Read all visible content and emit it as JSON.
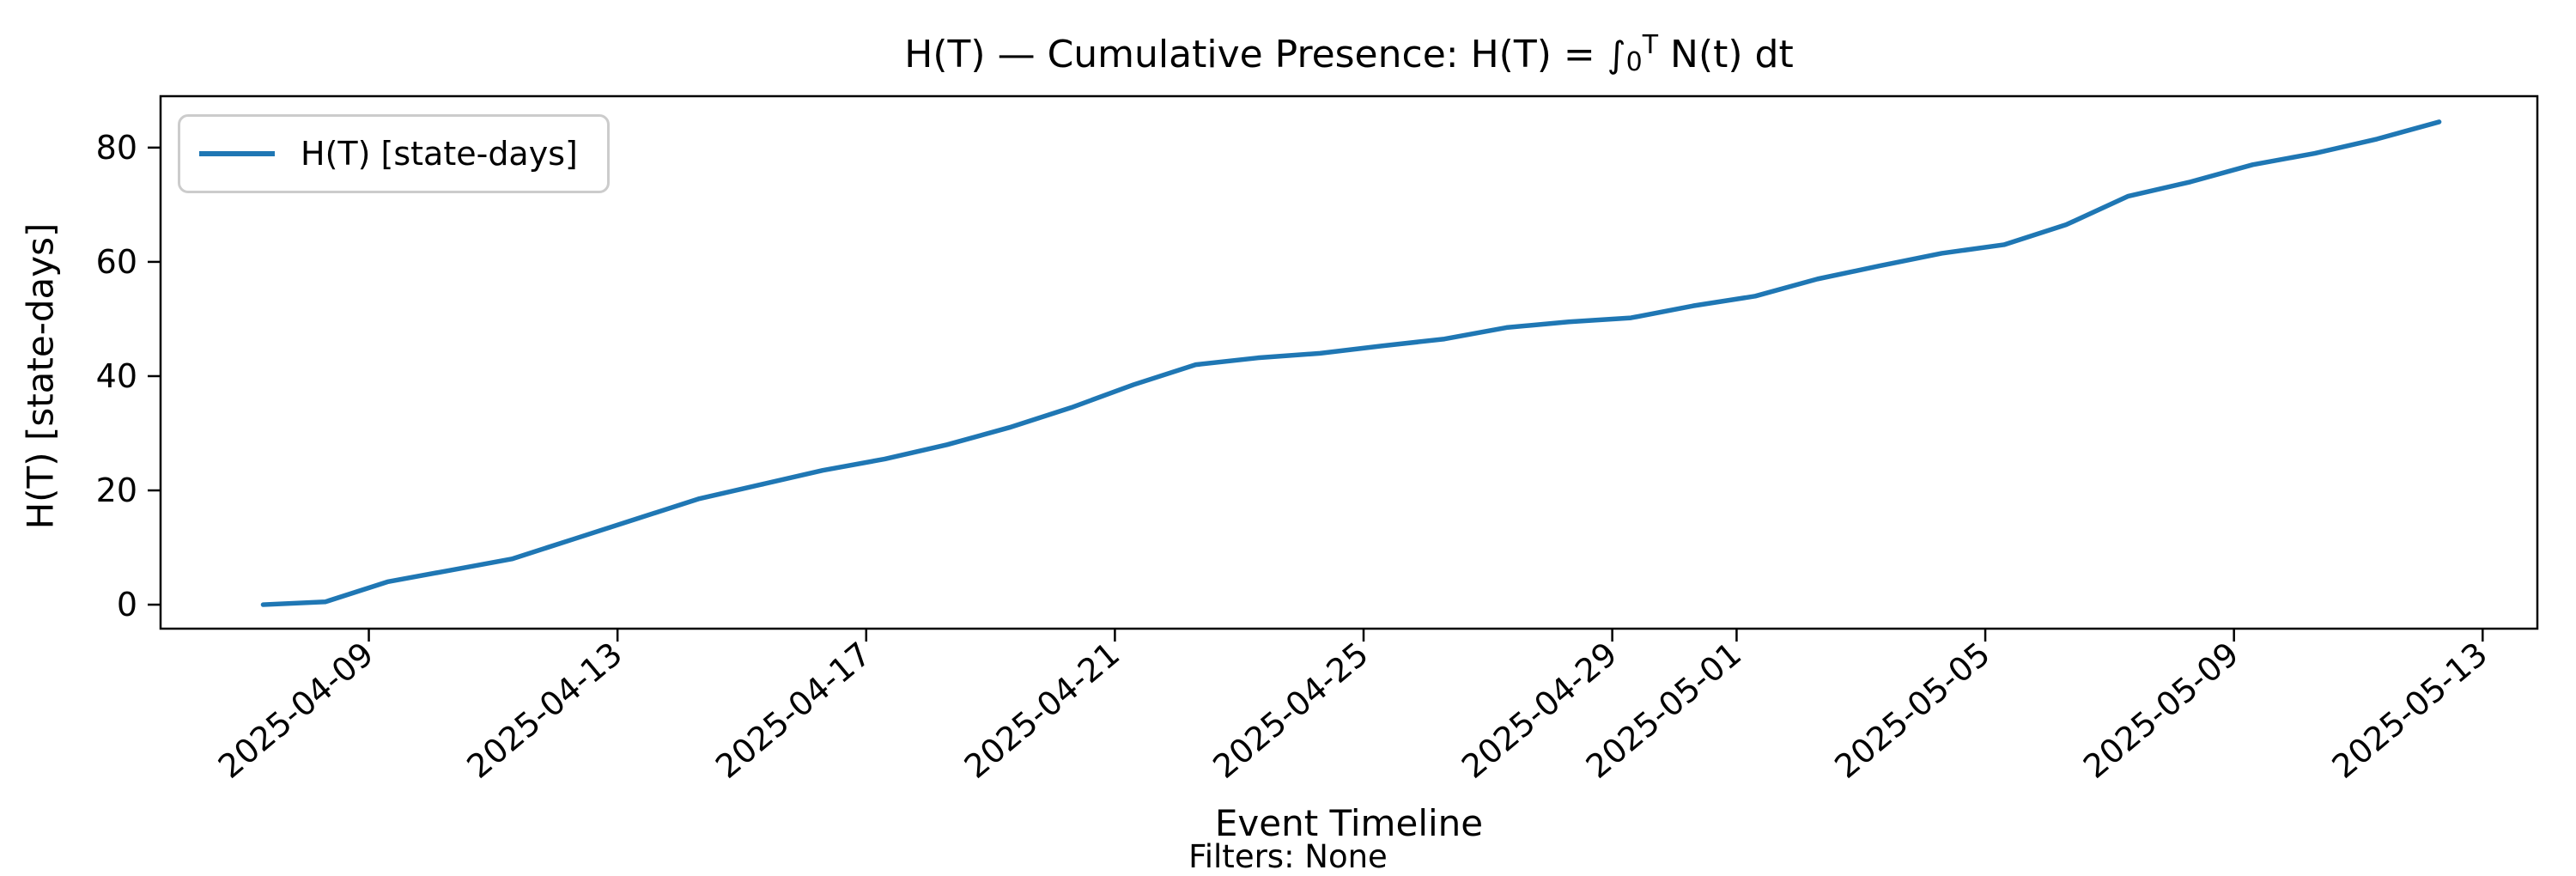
{
  "figure": {
    "title": "H(T) — Cumulative Presence: H(T) = ∫₀ᵀ N(t) dt",
    "title_parts": {
      "prefix": "H(T) — Cumulative Presence: H(T) = ",
      "integral": "∫",
      "sub": "0",
      "sup": "T",
      "suffix": " N(t) dt"
    },
    "xlabel": "Event Timeline",
    "ylabel": "H(T) [state-days]",
    "note": "Filters: None"
  },
  "legend": {
    "label": "H(T) [state-days]",
    "position": "upper left"
  },
  "chart_data": {
    "type": "line",
    "title": "H(T) — Cumulative Presence: H(T) = ∫₀ᵀ N(t) dt",
    "xlabel": "Event Timeline",
    "ylabel": "H(T) [state-days]",
    "annotation": "Filters: None",
    "legend_entries": [
      "H(T) [state-days]"
    ],
    "legend_position": "upper left",
    "line_color": "#1f77b4",
    "axis_color": "#000000",
    "grid": false,
    "x": [
      "2025-04-07",
      "2025-04-08",
      "2025-04-09",
      "2025-04-10",
      "2025-04-11",
      "2025-04-12",
      "2025-04-13",
      "2025-04-14",
      "2025-04-15",
      "2025-04-16",
      "2025-04-17",
      "2025-04-18",
      "2025-04-19",
      "2025-04-20",
      "2025-04-21",
      "2025-04-22",
      "2025-04-23",
      "2025-04-24",
      "2025-04-25",
      "2025-04-26",
      "2025-04-27",
      "2025-04-28",
      "2025-04-29",
      "2025-04-30",
      "2025-05-01",
      "2025-05-02",
      "2025-05-03",
      "2025-05-04",
      "2025-05-05",
      "2025-05-06",
      "2025-05-07",
      "2025-05-08",
      "2025-05-09",
      "2025-05-10",
      "2025-05-11",
      "2025-05-12"
    ],
    "y": [
      0,
      0.5,
      4,
      6,
      8,
      11.5,
      15,
      18.5,
      21,
      23.5,
      25.5,
      28,
      31,
      34.5,
      38.5,
      42,
      43.2,
      44,
      45.3,
      46.5,
      48.5,
      49.5,
      50.2,
      52.3,
      54,
      57,
      59.3,
      61.5,
      63,
      66.5,
      71.5,
      74,
      77,
      79,
      81.5,
      84.5
    ],
    "x_tick_labels": [
      "2025-04-09",
      "2025-04-13",
      "2025-04-17",
      "2025-04-21",
      "2025-04-25",
      "2025-04-29",
      "2025-05-01",
      "2025-05-05",
      "2025-05-09",
      "2025-05-13"
    ],
    "y_ticks": [
      0,
      20,
      40,
      60,
      80
    ],
    "ylim": [
      -4.2,
      89.0
    ],
    "xlim_days": [
      -1.35,
      36.88
    ]
  }
}
